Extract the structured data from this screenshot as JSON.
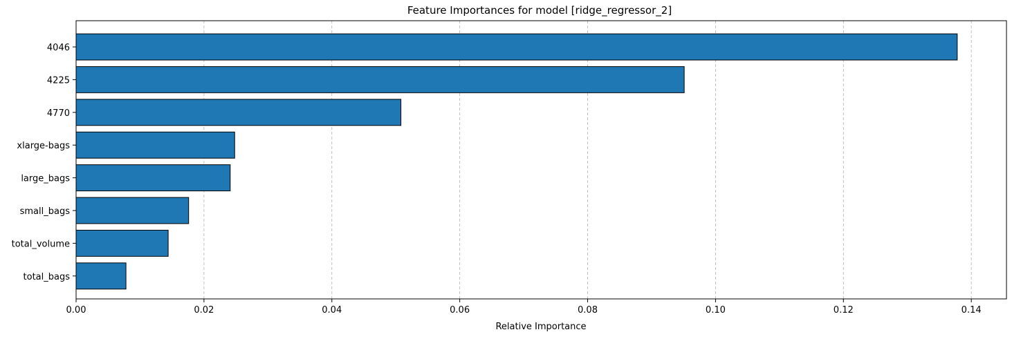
{
  "chart_data": {
    "type": "bar",
    "orientation": "horizontal",
    "title": "Feature Importances for model [ridge_regressor_2]",
    "xlabel": "Relative Importance",
    "ylabel": "",
    "categories": [
      "4046",
      "4225",
      "4770",
      "xlarge-bags",
      "large_bags",
      "small_bags",
      "total_volume",
      "total_bags"
    ],
    "values": [
      0.1378,
      0.0951,
      0.0508,
      0.0248,
      0.0241,
      0.0176,
      0.0144,
      0.0078
    ],
    "xlim": [
      0,
      0.1455
    ],
    "xticks": [
      0.0,
      0.02,
      0.04,
      0.06,
      0.08,
      0.1,
      0.12,
      0.14
    ],
    "xtick_labels": [
      "0.00",
      "0.02",
      "0.04",
      "0.06",
      "0.08",
      "0.10",
      "0.12",
      "0.14"
    ],
    "grid": "x-axis, dashed",
    "legend": "none",
    "colors": {
      "bar_fill": "#1f77b4",
      "bar_edge": "#000000",
      "grid": "#b0b0b0"
    }
  }
}
